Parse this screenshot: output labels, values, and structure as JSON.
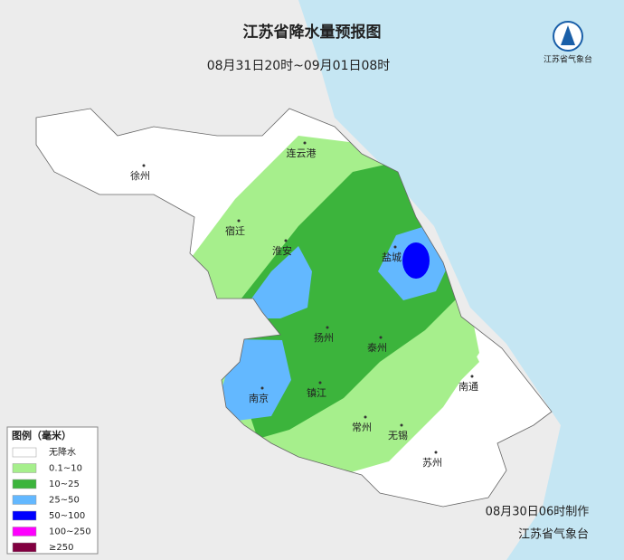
{
  "header": {
    "title": "江苏省降水量预报图",
    "subtitle": "08月31日20时~09月01日08时"
  },
  "logo": {
    "text": "江苏省气象台"
  },
  "cities": [
    "徐州",
    "连云港",
    "宿迁",
    "淮安",
    "盐城",
    "扬州",
    "泰州",
    "南通",
    "南京",
    "镇江",
    "常州",
    "无锡",
    "苏州"
  ],
  "legend": {
    "title": "图例（毫米）",
    "items": [
      {
        "label": "无降水",
        "color": "#ffffff"
      },
      {
        "label": "0.1~10",
        "color": "#a6ef8c"
      },
      {
        "label": "10~25",
        "color": "#3cb43c"
      },
      {
        "label": "25~50",
        "color": "#63b8ff"
      },
      {
        "label": "50~100",
        "color": "#0000fe"
      },
      {
        "label": "100~250",
        "color": "#fe00fe"
      },
      {
        "label": "≥250",
        "color": "#810040"
      }
    ]
  },
  "footer": {
    "made": "08月30日06时制作",
    "agency": "江苏省气象台"
  }
}
